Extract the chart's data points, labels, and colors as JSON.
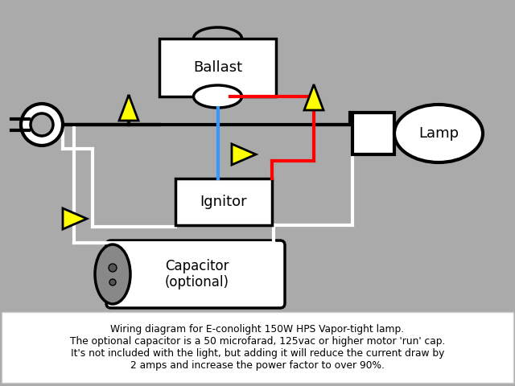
{
  "bg_color": "#aaaaaa",
  "text_box_color": "#ffffff",
  "wire_white": "#ffffff",
  "wire_red": "#ff0000",
  "wire_blue": "#3399ff",
  "wire_black": "#000000",
  "component_fill": "#ffffff",
  "component_outline": "#000000",
  "arrow_color": "#ffff00",
  "arrow_outline": "#000000",
  "cap_end_color": "#888888",
  "title": "Wiring diagram for E-conolight 150W HPS Vapor-tight lamp.\nThe optional capacitor is a 50 microfarad, 125vac or higher motor 'run' cap.\nIt's not included with the light, but adding it will reduce the current draw by\n2 amps and increase the power factor to over 90%.",
  "label_ballast": "Ballast",
  "label_ignitor": "Ignitor",
  "label_capacitor": "Capacitor\n(optional)",
  "label_lamp": "Lamp"
}
